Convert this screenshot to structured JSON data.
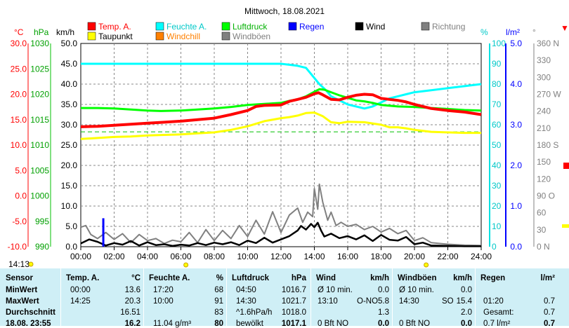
{
  "title": "Mittwoch, 18.08.2021",
  "colors": {
    "temp": "#ff0000",
    "taupunkt": "#ffff00",
    "feuchte": "#00ffff",
    "windchill": "#ff8000",
    "luftdruck": "#00ff00",
    "windboeen": "#808080",
    "regen": "#0000ff",
    "wind": "#000000",
    "richtung": "#808080"
  },
  "legend": [
    {
      "label": "Temp. A.",
      "color": "#ff0000"
    },
    {
      "label": "Taupunkt",
      "color": "#ffff00"
    },
    {
      "label": "Feuchte A.",
      "color": "#00ffff"
    },
    {
      "label": "Windchill",
      "color": "#ff8000"
    },
    {
      "label": "Luftdruck",
      "color": "#00ff00"
    },
    {
      "label": "Windböen",
      "color": "#808080"
    },
    {
      "label": "Regen",
      "color": "#0000ff"
    },
    {
      "label": "Wind",
      "color": "#000000"
    },
    {
      "label": "Richtung",
      "color": "#808080"
    }
  ],
  "axis_units": {
    "temp": "°C",
    "pressure": "hPa",
    "wind": "km/h",
    "humidity": "%",
    "rain": "l/m²",
    "direction": "°"
  },
  "time_marker": "14:13",
  "chart_data": {
    "type": "line",
    "title": "Mittwoch, 18.08.2021",
    "x_ticks": [
      "00:00",
      "02:00",
      "04:00",
      "06:00",
      "08:00",
      "10:00",
      "12:00",
      "14:00",
      "16:00",
      "18:00",
      "20:00",
      "22:00",
      "24:00"
    ],
    "axes": {
      "temp": {
        "unit": "°C",
        "range": [
          -10,
          30
        ],
        "ticks": [
          "30.0",
          "25.0",
          "20.0",
          "15.0",
          "10.0",
          "5.0",
          "0.0",
          "-5.0",
          "-10.0"
        ]
      },
      "pressure": {
        "unit": "hPa",
        "range": [
          990,
          1030
        ],
        "ticks": [
          "1030",
          "1025",
          "1020",
          "1015",
          "1010",
          "1005",
          "1000",
          "995",
          "990"
        ]
      },
      "wind": {
        "unit": "km/h",
        "range": [
          0,
          50
        ],
        "ticks": [
          "50.0",
          "45.0",
          "40.0",
          "35.0",
          "30.0",
          "25.0",
          "20.0",
          "15.0",
          "10.0",
          "5.0",
          "0.0"
        ]
      },
      "humidity": {
        "unit": "%",
        "range": [
          0,
          100
        ],
        "ticks": [
          "100",
          "90",
          "80",
          "70",
          "60",
          "50",
          "40",
          "30",
          "20",
          "10",
          "0"
        ]
      },
      "rain": {
        "unit": "l/m²",
        "range": [
          0,
          5
        ],
        "ticks": [
          "5.0",
          "4.0",
          "3.0",
          "2.0",
          "1.0",
          "0.0"
        ]
      },
      "direction": {
        "unit": "°",
        "range": [
          0,
          360
        ],
        "ticks": [
          "360 N",
          "330",
          "300",
          "270 W",
          "240",
          "210",
          "180 S",
          "150",
          "120",
          "90 O",
          "60",
          "30",
          "0 N"
        ]
      }
    },
    "grid": true,
    "series": [
      {
        "name": "Temp. A.",
        "axis": "temp",
        "x": [
          0,
          1,
          2,
          3,
          4,
          5,
          6,
          7,
          8,
          9,
          10,
          10.5,
          11,
          12,
          12.5,
          13,
          13.5,
          14,
          14.25,
          14.5,
          15,
          15.5,
          16,
          16.5,
          17,
          17.5,
          18,
          18.5,
          19,
          19.5,
          20,
          21,
          22,
          23,
          24
        ],
        "y": [
          13.6,
          13.7,
          13.9,
          14.1,
          14.3,
          14.5,
          14.7,
          15.0,
          15.3,
          16.0,
          16.8,
          17.6,
          17.8,
          17.9,
          18.6,
          19.0,
          19.4,
          20.1,
          20.3,
          19.9,
          19.0,
          18.9,
          19.4,
          19.8,
          20.0,
          19.9,
          19.2,
          19.0,
          18.8,
          18.5,
          18.0,
          17.2,
          16.8,
          16.5,
          16.0
        ]
      },
      {
        "name": "Taupunkt",
        "axis": "temp",
        "x": [
          0,
          1,
          2,
          3,
          4,
          5,
          6,
          7,
          8,
          9,
          10,
          11,
          12,
          12.5,
          13,
          13.5,
          14,
          14.5,
          15,
          15.5,
          16,
          17,
          18,
          18.5,
          19,
          19.5,
          20,
          21,
          22,
          23,
          24
        ],
        "y": [
          11.2,
          11.4,
          11.6,
          11.7,
          11.9,
          12.0,
          12.1,
          12.3,
          12.5,
          13.0,
          13.7,
          14.7,
          15.3,
          15.5,
          15.8,
          16.3,
          16.4,
          15.7,
          14.5,
          14.3,
          14.6,
          14.5,
          14.0,
          13.5,
          13.5,
          13.3,
          13.0,
          12.6,
          12.5,
          12.4,
          12.4
        ]
      },
      {
        "name": "Feuchte A.",
        "axis": "humidity",
        "x": [
          0,
          2,
          4,
          6,
          8,
          10,
          11,
          12,
          12.5,
          13,
          13.5,
          14,
          14.3,
          14.7,
          15,
          15.5,
          16,
          16.5,
          17,
          17.5,
          18,
          18.5,
          19,
          19.5,
          20,
          21,
          22,
          23,
          24
        ],
        "y": [
          90,
          90,
          90,
          90,
          90,
          90,
          90,
          90,
          89.5,
          89,
          88,
          83,
          80,
          77,
          74,
          72,
          70,
          69,
          68,
          69,
          71,
          73,
          74,
          75,
          76,
          77,
          78,
          79,
          80
        ]
      },
      {
        "name": "Luftdruck",
        "axis": "pressure",
        "x": [
          0,
          1,
          2,
          3,
          4,
          4.8,
          6,
          7,
          8,
          9,
          10,
          11,
          12,
          12.5,
          13,
          13.5,
          14,
          14.3,
          14.6,
          15,
          15.5,
          16,
          16.5,
          17,
          17.5,
          18,
          19,
          20,
          21,
          22,
          23,
          24
        ],
        "y": [
          1017.3,
          1017.3,
          1017.2,
          1017.0,
          1016.8,
          1016.7,
          1016.8,
          1017.0,
          1017.2,
          1017.5,
          1017.9,
          1018.1,
          1018.3,
          1018.7,
          1019.0,
          1019.6,
          1020.5,
          1021.0,
          1020.9,
          1020.4,
          1019.8,
          1019.3,
          1018.8,
          1018.6,
          1018.3,
          1017.9,
          1017.6,
          1017.5,
          1017.3,
          1017.1,
          1016.9,
          1016.8
        ]
      },
      {
        "name": "Wind",
        "axis": "wind",
        "x": [
          0,
          0.5,
          1,
          1.5,
          2,
          2.5,
          3,
          3.5,
          4,
          4.5,
          5,
          5.5,
          6,
          6.5,
          7,
          7.5,
          8,
          8.5,
          9,
          9.5,
          10,
          10.5,
          11,
          11.5,
          12,
          12.5,
          13,
          13.2,
          13.5,
          13.8,
          14,
          14.2,
          14.4,
          14.6,
          15,
          15.5,
          16,
          16.5,
          17,
          17.5,
          18,
          18.5,
          19,
          19.5,
          20,
          20.5,
          21,
          22,
          23,
          24
        ],
        "y": [
          0.8,
          1.8,
          1.2,
          0.3,
          0.9,
          0.5,
          1.4,
          0.3,
          1.1,
          0.4,
          0.6,
          0.2,
          0.5,
          0.3,
          0.9,
          0.4,
          1.0,
          0.6,
          1.1,
          0.4,
          1.5,
          0.9,
          2.2,
          1.0,
          1.8,
          2.6,
          4.0,
          5.1,
          4.2,
          5.6,
          4.8,
          5.9,
          4.0,
          2.5,
          3.2,
          2.1,
          2.6,
          1.8,
          2.8,
          1.4,
          2.9,
          1.7,
          1.5,
          2.4,
          0.6,
          1.0,
          0.3,
          0.2,
          0.1,
          0.1
        ]
      },
      {
        "name": "Windböen",
        "axis": "wind",
        "x": [
          0,
          0.3,
          0.6,
          1,
          1.5,
          2,
          2.5,
          3,
          3.5,
          4,
          4.5,
          5,
          5.5,
          6,
          6.5,
          7,
          7.5,
          8,
          8.5,
          9,
          9.5,
          10,
          10.5,
          11,
          11.5,
          12,
          12.5,
          13,
          13.3,
          13.6,
          13.9,
          14,
          14.2,
          14.3,
          14.5,
          14.8,
          15,
          15.3,
          15.6,
          16,
          16.5,
          17,
          17.5,
          18,
          18.5,
          19,
          19.5,
          20,
          20.5,
          21,
          22,
          23,
          24
        ],
        "y": [
          4.8,
          5.2,
          3.0,
          2.0,
          3.5,
          1.8,
          3.2,
          1.0,
          3.0,
          1.5,
          2.0,
          0.8,
          1.6,
          1.2,
          3.5,
          1.0,
          4.2,
          1.5,
          4.0,
          2.0,
          5.2,
          2.5,
          6.5,
          3.1,
          8.6,
          3.5,
          7.8,
          9.5,
          6.0,
          8.5,
          7.4,
          14.3,
          9.2,
          15.4,
          11.0,
          6.5,
          8.5,
          5.2,
          6.0,
          5.0,
          5.5,
          4.2,
          5.0,
          3.6,
          4.5,
          3.2,
          4.0,
          1.5,
          2.2,
          1.0,
          0.6,
          0.4,
          0.3
        ]
      },
      {
        "name": "Regen",
        "axis": "rain",
        "type": "bar",
        "x": [
          1.35
        ],
        "y": [
          0.7
        ]
      }
    ],
    "guide_line": {
      "axis": "temp",
      "value": 12.6
    }
  },
  "stats": {
    "headers": [
      "Sensor",
      "Temp. A.",
      "°C",
      "Feuchte A.",
      "%",
      "Luftdruck",
      "hPa",
      "Wind",
      "km/h",
      "Windböen",
      "km/h",
      "Regen",
      "l/m²"
    ],
    "rows": [
      {
        "label": "MinWert",
        "temp_time": "00:00",
        "temp": "13.6",
        "hum_time": "17:20",
        "hum": "68",
        "press_time": "04:50",
        "press": "1016.7",
        "wind_desc": "Ø 10 min.",
        "wind": "0.0",
        "gust_desc": "Ø 10 min.",
        "gust": "0.0",
        "rain_desc": "",
        "rain": ""
      },
      {
        "label": "MaxWert",
        "temp_time": "14:25",
        "temp": "20.3",
        "hum_time": "10:00",
        "hum": "91",
        "press_time": "14:30",
        "press": "1021.7",
        "wind_desc": "13:10",
        "wind_dir": "O-NO",
        "wind": "5.8",
        "gust_desc": "14:30",
        "gust_dir": "SO",
        "gust": "15.4",
        "rain_desc": "01:20",
        "rain": "0.7"
      },
      {
        "label": "Durchschnitt",
        "temp_time": "",
        "temp": "16.51",
        "hum_time": "",
        "hum": "83",
        "press_time": "^1.6hPa/h",
        "press": "1018.0",
        "wind_desc": "",
        "wind": "1.3",
        "gust_desc": "",
        "gust": "2.0",
        "rain_desc": "Gesamt:",
        "rain": "0.7"
      },
      {
        "label": "18.08. 23:55",
        "temp_time": "",
        "temp": "16.2",
        "hum_time": "11.04 g/m³",
        "hum": "80",
        "press_time": "bewölkt",
        "press": "1017.1",
        "wind_desc": "0 Bft NO",
        "wind": "0.0",
        "gust_desc": "0 Bft NO",
        "gust": "0.0",
        "rain_desc": "0.7 l/m²",
        "rain": "0.7"
      }
    ]
  }
}
